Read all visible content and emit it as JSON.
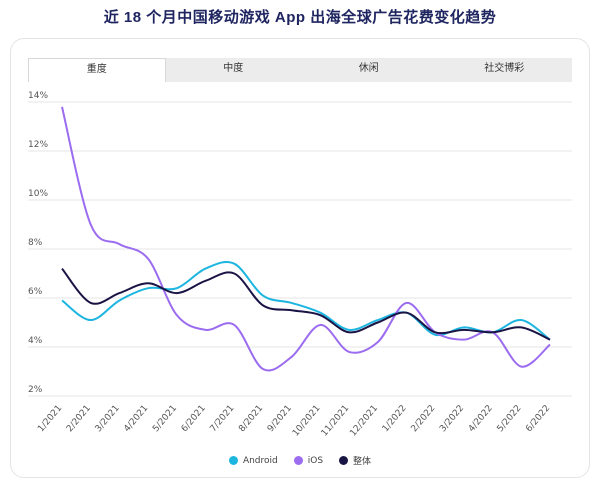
{
  "title": "近 18 个月中国移动游戏 App 出海全球广告花费变化趋势",
  "tabs": [
    "重度",
    "中度",
    "休闲",
    "社交博彩"
  ],
  "active_tab": 0,
  "chart_data": {
    "type": "line",
    "categories": [
      "1/2021",
      "2/2021",
      "3/2021",
      "4/2021",
      "5/2021",
      "6/2021",
      "7/2021",
      "8/2021",
      "9/2021",
      "10/2021",
      "11/2021",
      "12/2021",
      "1/2022",
      "2/2022",
      "3/2022",
      "4/2022",
      "5/2022",
      "6/2022"
    ],
    "y_ticks": [
      "2%",
      "4%",
      "6%",
      "8%",
      "10%",
      "12%",
      "14%"
    ],
    "ylim": [
      2,
      14
    ],
    "grid": true,
    "legend_position": "bottom",
    "series": [
      {
        "name": "Android",
        "color": "#1cb5e0",
        "values": [
          5.9,
          5.1,
          5.9,
          6.4,
          6.4,
          7.2,
          7.4,
          6.1,
          5.8,
          5.4,
          4.7,
          5.1,
          5.4,
          4.5,
          4.8,
          4.6,
          5.1,
          4.3
        ]
      },
      {
        "name": "iOS",
        "color": "#9b6cf0",
        "values": [
          13.8,
          9.0,
          8.2,
          7.6,
          5.3,
          4.7,
          4.9,
          3.1,
          3.6,
          4.9,
          3.8,
          4.2,
          5.8,
          4.6,
          4.3,
          4.6,
          3.2,
          4.1
        ]
      },
      {
        "name": "整体",
        "color": "#1a1445",
        "values": [
          7.2,
          5.8,
          6.2,
          6.6,
          6.2,
          6.7,
          7.0,
          5.7,
          5.5,
          5.3,
          4.6,
          5.0,
          5.4,
          4.6,
          4.7,
          4.6,
          4.8,
          4.3
        ]
      }
    ]
  }
}
